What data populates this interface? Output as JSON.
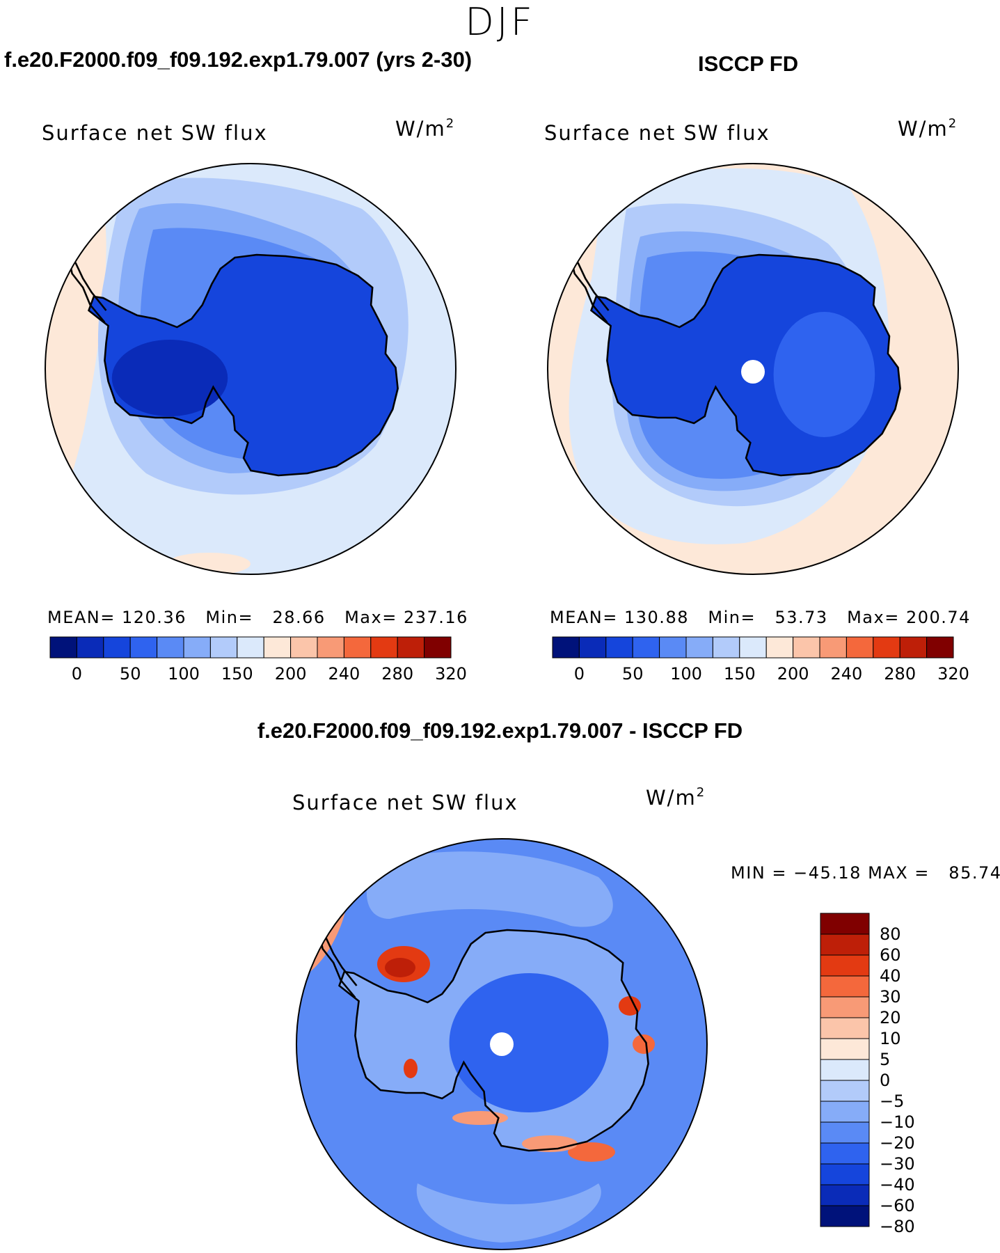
{
  "figure": {
    "season": "DJF",
    "units": "W/m",
    "units_exponent": "2"
  },
  "panels": {
    "model": {
      "title": "f.e20.F2000.f09_f09.192.exp1.79.007 (yrs 2-30)",
      "variable": "Surface net SW flux",
      "stats": {
        "mean_label": "MEAN=",
        "mean": "120.36",
        "min_label": "Min=",
        "min": "28.66",
        "max_label": "Max=",
        "max": "237.16"
      }
    },
    "obs": {
      "title": "ISCCP FD",
      "variable": "Surface net SW flux",
      "stats": {
        "mean_label": "MEAN=",
        "mean": "130.88",
        "min_label": "Min=",
        "min": "53.73",
        "max_label": "Max=",
        "max": "200.74"
      }
    },
    "diff": {
      "title": "f.e20.F2000.f09_f09.192.exp1.79.007 - ISCCP FD",
      "variable": "Surface net SW flux",
      "stats": {
        "min_label": "MIN =",
        "min": "−45.18",
        "max_label": "MAX =",
        "max": "85.74"
      }
    }
  },
  "colorbars": {
    "absolute": {
      "colors": [
        "#00127a",
        "#0a2bb8",
        "#1545dc",
        "#2f63ef",
        "#5a8af5",
        "#86acf8",
        "#b2cbfa",
        "#dbe9fb",
        "#fde8d8",
        "#fbc5aa",
        "#f89a76",
        "#f4683c",
        "#e33a12",
        "#be1f08",
        "#800000"
      ],
      "labels": [
        "0",
        "50",
        "100",
        "150",
        "200",
        "240",
        "280",
        "320"
      ],
      "label_levels": [
        0,
        50,
        100,
        150,
        200,
        240,
        280,
        320
      ],
      "levels": [
        0,
        25,
        50,
        75,
        100,
        125,
        150,
        175,
        200,
        220,
        240,
        260,
        280,
        300,
        320
      ]
    },
    "difference": {
      "colors": [
        "#800000",
        "#be1f08",
        "#e33a12",
        "#f4683c",
        "#f89a76",
        "#fbc5aa",
        "#fde8d8",
        "#dbe9fb",
        "#b2cbfa",
        "#86acf8",
        "#5a8af5",
        "#2f63ef",
        "#1545dc",
        "#0a2bb8",
        "#00127a"
      ],
      "labels": [
        "80",
        "60",
        "40",
        "30",
        "20",
        "10",
        "5",
        "0",
        "−5",
        "−10",
        "−20",
        "−30",
        "−40",
        "−60",
        "−80"
      ]
    }
  },
  "fields": {
    "model": {
      "ocean_levels": [
        100,
        125,
        150,
        175,
        200
      ],
      "ice_sheet_level": 25,
      "shelf_level": 50
    },
    "obs": {
      "ocean_levels": [
        75,
        100,
        125,
        150,
        175,
        200
      ],
      "ice_sheet_level": 50,
      "missing_pole": true
    },
    "diff": {
      "ocean_levels": [
        -10,
        -20,
        -30,
        0,
        5
      ],
      "coastal_anomaly_levels": [
        10,
        20,
        40,
        60,
        80
      ],
      "missing_pole": true
    }
  },
  "colors": {
    "coastline": "#000000",
    "background": "#ffffff"
  }
}
